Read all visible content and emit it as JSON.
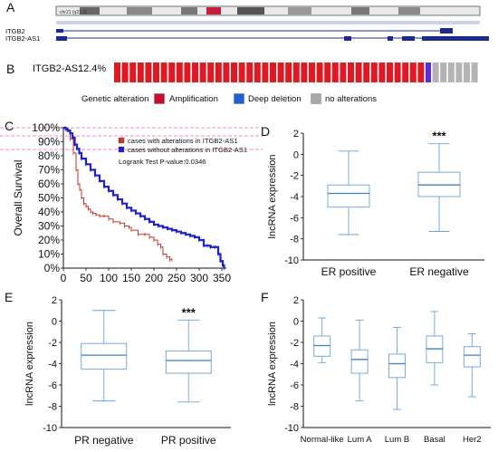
{
  "panel_labels": {
    "a": "A",
    "b": "B",
    "c": "C",
    "d": "D",
    "e": "E",
    "f": "F"
  },
  "genome_browser": {
    "track_ruler_text": "chr21 (q22.3)",
    "genes": [
      "ITGB2",
      "ITGB2-AS1"
    ]
  },
  "oncoprint": {
    "gene": "ITGB2-AS1",
    "percent": ": 2.4%",
    "legend_title": "Genetic alteration",
    "legend": [
      {
        "label": "Amplification",
        "color": "#c8102e"
      },
      {
        "label": "Deep deletion",
        "color": "#1f5fd6"
      },
      {
        "label": "no alterations",
        "color": "#a8a8a8"
      }
    ],
    "colors": {
      "amplification": "#e01a22",
      "deletion": "#5b2fd6",
      "none": "#b4b4b4"
    }
  },
  "chart_data": [
    {
      "panel": "C",
      "type": "line",
      "ylabel": "Overall Survival",
      "yticks": [
        "0%",
        "10%",
        "20%",
        "30%",
        "40%",
        "50%",
        "60%",
        "70%",
        "80%",
        "90%",
        "100%"
      ],
      "xticks": [
        0,
        50,
        100,
        150,
        200,
        250,
        300,
        350
      ],
      "xlim": [
        0,
        360
      ],
      "ylim": [
        0,
        100
      ],
      "legend": [
        "cases with alterations in ITGB2-AS1",
        "cases without alterations in ITGB2-AS1"
      ],
      "annotation": "Logrank Test P-value:0.0346",
      "series": [
        {
          "name": "cases with alterations in ITGB2-AS1",
          "color": "#c0392b",
          "points": [
            [
              0,
              100
            ],
            [
              8,
              98
            ],
            [
              15,
              92
            ],
            [
              22,
              82
            ],
            [
              28,
              70
            ],
            [
              32,
              60
            ],
            [
              36,
              56
            ],
            [
              40,
              50
            ],
            [
              45,
              46
            ],
            [
              50,
              44
            ],
            [
              55,
              42
            ],
            [
              60,
              40
            ],
            [
              65,
              39
            ],
            [
              72,
              38
            ],
            [
              80,
              37
            ],
            [
              90,
              37
            ],
            [
              100,
              35
            ],
            [
              110,
              33
            ],
            [
              125,
              32
            ],
            [
              135,
              30
            ],
            [
              145,
              29
            ],
            [
              150,
              27
            ],
            [
              165,
              24
            ],
            [
              180,
              24
            ],
            [
              190,
              22
            ],
            [
              200,
              20
            ],
            [
              208,
              17
            ],
            [
              215,
              15
            ],
            [
              220,
              10
            ],
            [
              228,
              8
            ],
            [
              235,
              6
            ],
            [
              240,
              6
            ]
          ]
        },
        {
          "name": "cases without alterations in ITGB2-AS1",
          "color": "#1d22c8",
          "points": [
            [
              0,
              100
            ],
            [
              5,
              99
            ],
            [
              10,
              98
            ],
            [
              15,
              96
            ],
            [
              20,
              93
            ],
            [
              25,
              88
            ],
            [
              30,
              85
            ],
            [
              35,
              82
            ],
            [
              40,
              78
            ],
            [
              50,
              74
            ],
            [
              60,
              70
            ],
            [
              70,
              66
            ],
            [
              80,
              62
            ],
            [
              90,
              58
            ],
            [
              100,
              55
            ],
            [
              110,
              52
            ],
            [
              120,
              49
            ],
            [
              130,
              46
            ],
            [
              140,
              43
            ],
            [
              150,
              41
            ],
            [
              160,
              39
            ],
            [
              170,
              37
            ],
            [
              180,
              35
            ],
            [
              190,
              33
            ],
            [
              200,
              31
            ],
            [
              210,
              30
            ],
            [
              220,
              29
            ],
            [
              230,
              28
            ],
            [
              240,
              27
            ],
            [
              250,
              26
            ],
            [
              260,
              25
            ],
            [
              270,
              24
            ],
            [
              280,
              23
            ],
            [
              290,
              22
            ],
            [
              300,
              20
            ],
            [
              310,
              16
            ],
            [
              318,
              16
            ],
            [
              325,
              15
            ],
            [
              335,
              15
            ],
            [
              342,
              10
            ],
            [
              347,
              5
            ],
            [
              352,
              2
            ],
            [
              355,
              0
            ]
          ]
        }
      ]
    },
    {
      "panel": "D",
      "type": "box",
      "ylabel": "lncRNA expression",
      "ylim": [
        -10,
        2
      ],
      "yticks": [
        2,
        0,
        -2,
        -4,
        -6,
        -8,
        -10
      ],
      "significance": "***",
      "categories": [
        "ER positive",
        "ER negative"
      ],
      "boxes": [
        {
          "min": -7.6,
          "q1": -5.0,
          "median": -3.7,
          "q3": -2.9,
          "max": 0.3
        },
        {
          "min": -7.3,
          "q1": -4.0,
          "median": -2.9,
          "q3": -1.7,
          "max": 1.0
        }
      ]
    },
    {
      "panel": "E",
      "type": "box",
      "ylabel": "lncRNA expression",
      "ylim": [
        -10,
        2
      ],
      "yticks": [
        2,
        0,
        -2,
        -4,
        -6,
        -8,
        -10
      ],
      "significance": "***",
      "categories": [
        "PR negative",
        "PR positive"
      ],
      "boxes": [
        {
          "min": -7.5,
          "q1": -4.5,
          "median": -3.2,
          "q3": -2.1,
          "max": 1.0
        },
        {
          "min": -7.6,
          "q1": -4.9,
          "median": -3.7,
          "q3": -2.8,
          "max": 0.1
        }
      ]
    },
    {
      "panel": "F",
      "type": "box",
      "ylabel": "lncRNA expression",
      "ylim": [
        -10,
        2
      ],
      "yticks": [
        2,
        0,
        -2,
        -4,
        -6,
        -8,
        -10
      ],
      "categories": [
        "Normal-like",
        "Lum A",
        "Lum B",
        "Basal",
        "Her2"
      ],
      "boxes": [
        {
          "min": -3.9,
          "q1": -3.3,
          "median": -2.3,
          "q3": -1.4,
          "max": 0.3
        },
        {
          "min": -7.5,
          "q1": -4.9,
          "median": -3.6,
          "q3": -2.7,
          "max": 0.1
        },
        {
          "min": -8.3,
          "q1": -5.3,
          "median": -4.0,
          "q3": -3.1,
          "max": -0.6
        },
        {
          "min": -6.0,
          "q1": -3.9,
          "median": -2.6,
          "q3": -1.4,
          "max": 0.9
        },
        {
          "min": -7.1,
          "q1": -4.3,
          "median": -3.2,
          "q3": -2.4,
          "max": -1.2
        }
      ]
    }
  ]
}
